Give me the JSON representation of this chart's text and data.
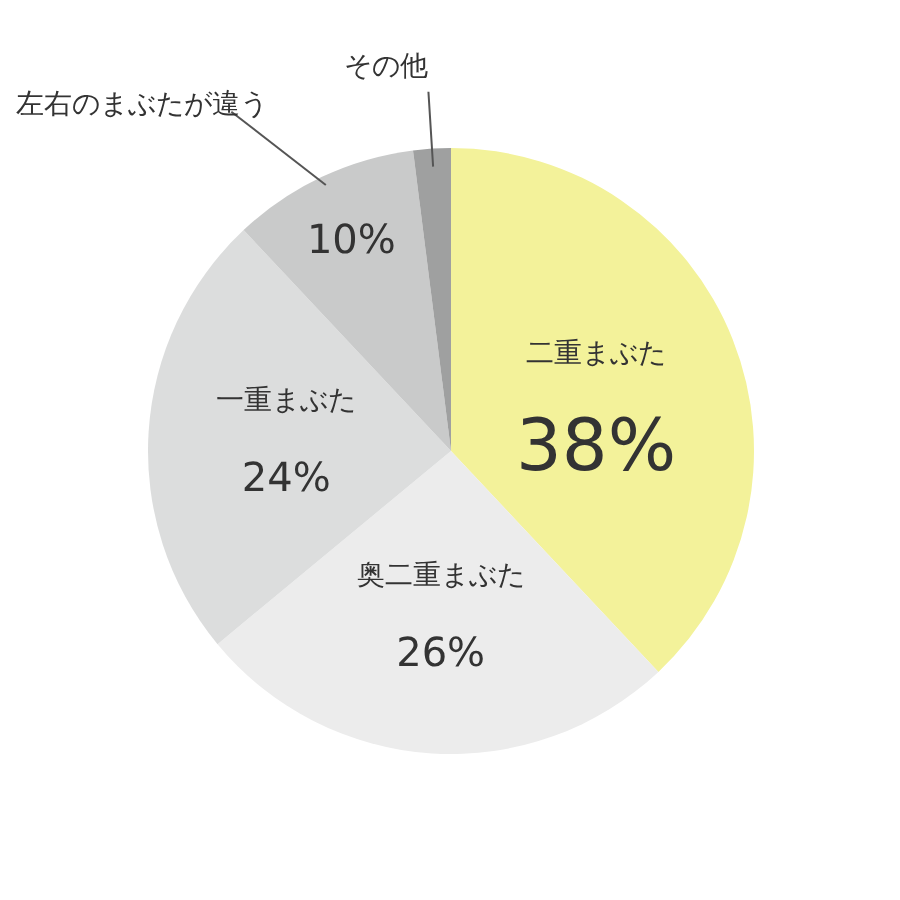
{
  "chart_data": {
    "type": "pie",
    "categories": [
      "二重まぶた",
      "奥二重まぶた",
      "一重まぶた",
      "左右のまぶたが違う",
      "その他"
    ],
    "values": [
      38,
      26,
      24,
      10,
      2
    ],
    "colors": [
      "#f3f29a",
      "#ececec",
      "#dcdddd",
      "#c9caca",
      "#9fa0a0"
    ],
    "value_labels": [
      "38%",
      "26%",
      "24%",
      "10%",
      null
    ]
  }
}
